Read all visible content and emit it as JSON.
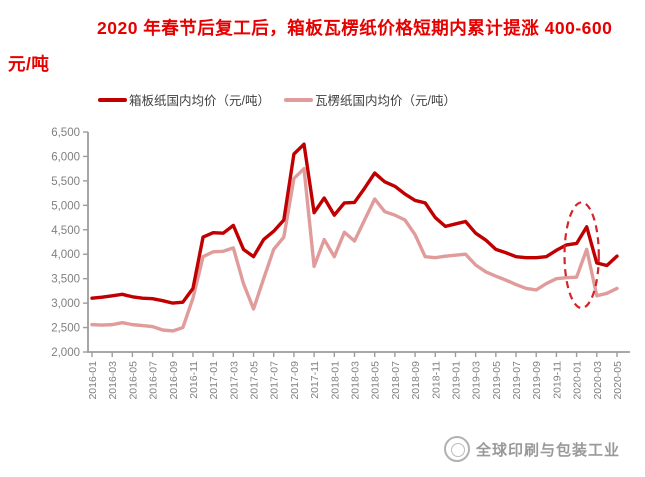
{
  "title": {
    "text": "2020 年春节后复工后，箱板瓦楞纸价格短期内累计提涨 400-600 元/吨",
    "color": "#e60000"
  },
  "watermark": {
    "text": "全球印刷与包装工业"
  },
  "chart_data": {
    "type": "line",
    "title": "",
    "xlabel": "",
    "ylabel": "",
    "ylim": [
      2000,
      6500
    ],
    "y_ticks": [
      6500,
      6000,
      5500,
      5000,
      4500,
      4000,
      3500,
      3000,
      2500,
      2000
    ],
    "y_tick_labels": [
      "6,500",
      "6,000",
      "5,500",
      "5,000",
      "4,500",
      "4,000",
      "3,500",
      "3,000",
      "2,500",
      "2,000"
    ],
    "grid": false,
    "legend_position": "top",
    "x": [
      "2016-01",
      "2016-02",
      "2016-03",
      "2016-04",
      "2016-05",
      "2016-06",
      "2016-07",
      "2016-08",
      "2016-09",
      "2016-10",
      "2016-11",
      "2016-12",
      "2017-01",
      "2017-02",
      "2017-03",
      "2017-04",
      "2017-05",
      "2017-06",
      "2017-07",
      "2017-08",
      "2017-09",
      "2017-10",
      "2017-11",
      "2017-12",
      "2018-01",
      "2018-02",
      "2018-03",
      "2018-04",
      "2018-05",
      "2018-06",
      "2018-07",
      "2018-08",
      "2018-09",
      "2018-10",
      "2018-11",
      "2018-12",
      "2019-01",
      "2019-02",
      "2019-03",
      "2019-04",
      "2019-05",
      "2019-06",
      "2019-07",
      "2019-08",
      "2019-09",
      "2019-10",
      "2019-11",
      "2019-12",
      "2020-01",
      "2020-02",
      "2020-03",
      "2020-04",
      "2020-05"
    ],
    "x_tick_labels": [
      "2016-01",
      "2016-03",
      "2016-05",
      "2016-07",
      "2016-09",
      "2016-11",
      "2017-01",
      "2017-03",
      "2017-05",
      "2017-07",
      "2017-09",
      "2017-11",
      "2018-01",
      "2018-03",
      "2018-05",
      "2018-07",
      "2018-09",
      "2018-11",
      "2019-01",
      "2019-03",
      "2019-05",
      "2019-07",
      "2019-09",
      "2019-11",
      "2020-01",
      "2020-03",
      "2020-05"
    ],
    "series": [
      {
        "name": "箱板纸国内均价（元/吨）",
        "color": "#c00000",
        "values": [
          3100,
          3120,
          3150,
          3180,
          3130,
          3100,
          3090,
          3050,
          3000,
          3020,
          3300,
          4350,
          4440,
          4430,
          4590,
          4100,
          3950,
          4300,
          4470,
          4700,
          6050,
          6250,
          4850,
          5150,
          4800,
          5050,
          5060,
          5350,
          5660,
          5480,
          5390,
          5230,
          5100,
          5050,
          4750,
          4570,
          4620,
          4670,
          4430,
          4290,
          4100,
          4030,
          3950,
          3930,
          3930,
          3950,
          4080,
          4190,
          4220,
          4560,
          3820,
          3770,
          3960
        ]
      },
      {
        "name": "瓦楞纸国内均价（元/吨）",
        "color": "#e09c9b",
        "values": [
          2560,
          2550,
          2560,
          2600,
          2560,
          2540,
          2520,
          2450,
          2430,
          2500,
          3100,
          3950,
          4050,
          4060,
          4130,
          3400,
          2880,
          3500,
          4100,
          4350,
          5550,
          5750,
          3750,
          4300,
          3950,
          4450,
          4270,
          4700,
          5130,
          4870,
          4800,
          4700,
          4400,
          3950,
          3930,
          3960,
          3980,
          4000,
          3780,
          3640,
          3550,
          3470,
          3380,
          3300,
          3270,
          3400,
          3500,
          3520,
          3530,
          4100,
          3150,
          3200,
          3300
        ]
      }
    ],
    "annotation": {
      "type": "ellipse",
      "x_range": [
        "2019-12",
        "2020-03"
      ],
      "y_range": [
        2900,
        5060
      ],
      "color": "#d3252b"
    },
    "axis_color": "#9c9c9c",
    "tick_label_color": "#808080"
  }
}
